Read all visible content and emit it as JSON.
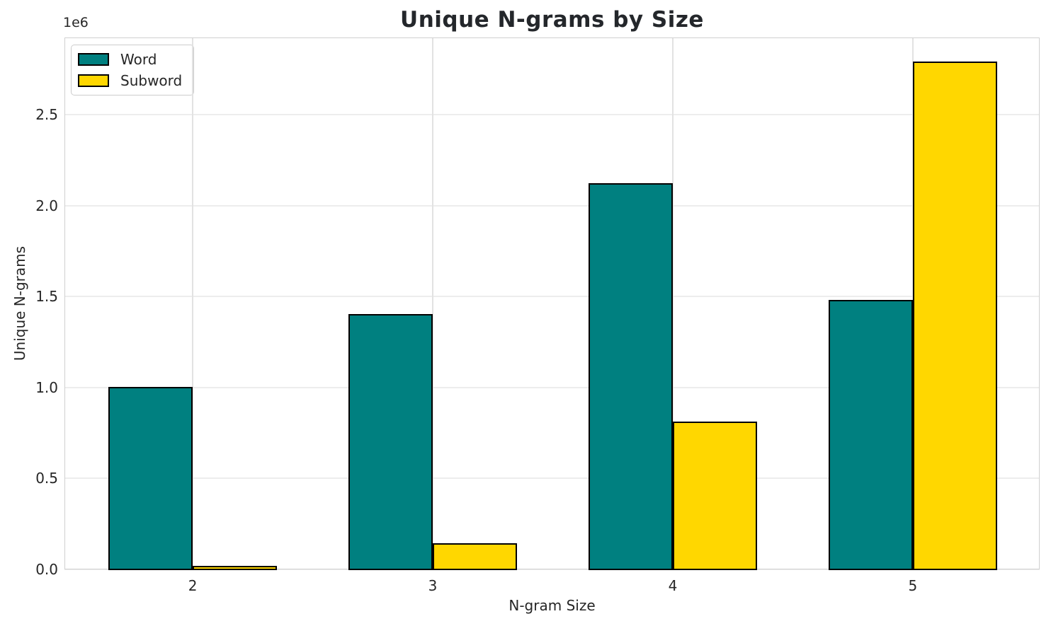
{
  "chart_data": {
    "type": "bar",
    "title": "Unique N-grams by Size",
    "xlabel": "N-gram Size",
    "ylabel": "Unique N-grams",
    "offset_text": "1e6",
    "categories": [
      "2",
      "3",
      "4",
      "5"
    ],
    "series": [
      {
        "name": "Word",
        "color": "#008080",
        "values": [
          1000000,
          1400000,
          2120000,
          1480000
        ]
      },
      {
        "name": "Subword",
        "color": "#FFD700",
        "values": [
          15000,
          140000,
          810000,
          2790000
        ]
      }
    ],
    "ylim": [
      0,
      2926000
    ],
    "yticks": [
      0,
      500000,
      1000000,
      1500000,
      2000000,
      2500000
    ],
    "ytick_labels": [
      "0.0",
      "0.5",
      "1.0",
      "1.5",
      "2.0",
      "2.5"
    ],
    "grid": true,
    "grid_axes": "both",
    "legend_position": "upper left",
    "bar_edge_color": "#000000",
    "background_color": "#ffffff"
  }
}
